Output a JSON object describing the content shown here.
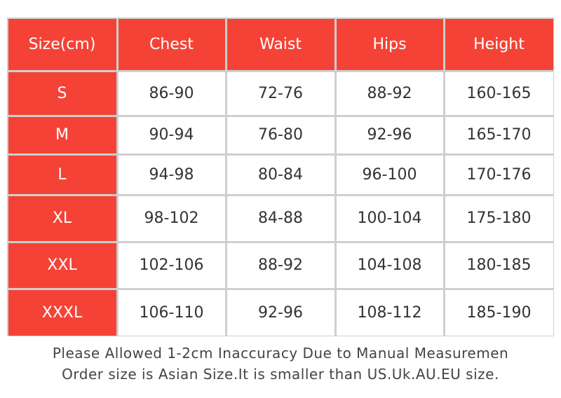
{
  "table": {
    "header": [
      "Size(cm)",
      "Chest",
      "Waist",
      "Hips",
      "Height"
    ],
    "rows": [
      [
        "S",
        "86-90",
        "72-76",
        "88-92",
        "160-165"
      ],
      [
        "M",
        "90-94",
        "76-80",
        "92-96",
        "165-170"
      ],
      [
        "L",
        "94-98",
        "80-84",
        "96-100",
        "170-176"
      ],
      [
        "XL",
        "98-102",
        "84-88",
        "100-104",
        "175-180"
      ],
      [
        "XXL",
        "102-106",
        "88-92",
        "104-108",
        "180-185"
      ],
      [
        "XXXL",
        "106-110",
        "92-96",
        "108-112",
        "185-190"
      ]
    ]
  },
  "notes": [
    "Please Allowed 1-2cm Inaccuracy Due to Manual Measuremen",
    "Order size is Asian Size.It is smaller than US.Uk.AU.EU size."
  ]
}
